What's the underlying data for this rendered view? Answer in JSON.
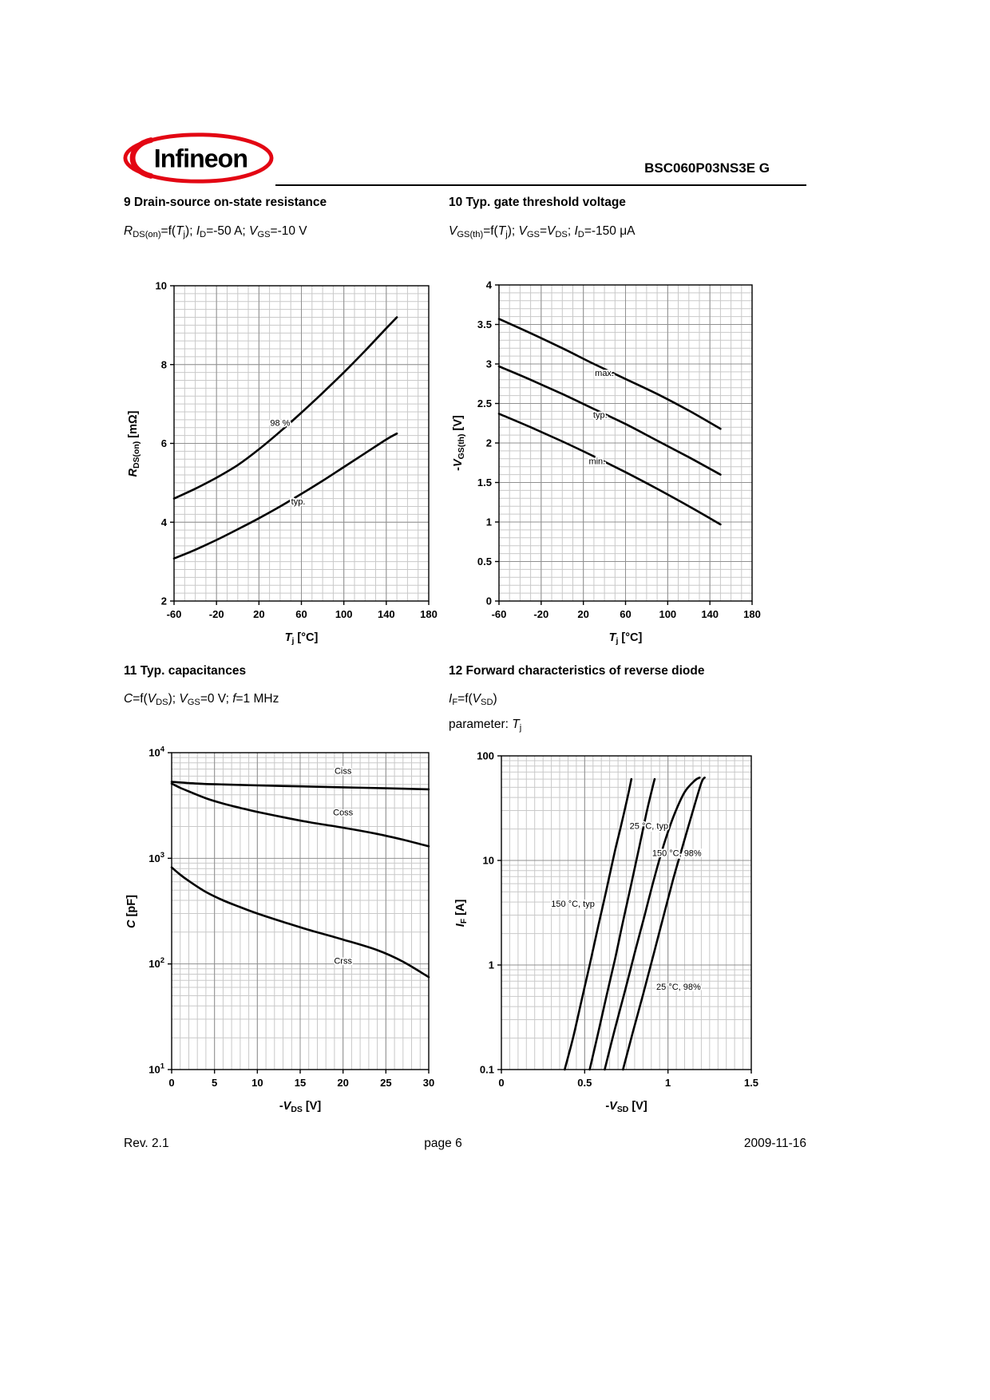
{
  "header": {
    "logo_text": "Infineon",
    "doc_title": "BSC060P03NS3E G",
    "brand_red": "#E30613",
    "brand_blue": "#1A5DAD"
  },
  "sections": [
    {
      "heading": "9 Drain-source on-state resistance",
      "subtitle": [
        [
          "R",
          "i"
        ],
        [
          "DS(on)",
          "s"
        ],
        [
          "=f(",
          ""
        ],
        [
          "T",
          "i"
        ],
        [
          "j",
          "s"
        ],
        [
          "); ",
          ""
        ],
        [
          "I",
          "i"
        ],
        [
          "D",
          "s"
        ],
        [
          "=-50 A; ",
          ""
        ],
        [
          "V",
          "i"
        ],
        [
          "GS",
          "s"
        ],
        [
          "=-10 V",
          ""
        ]
      ]
    },
    {
      "heading": "10 Typ. gate threshold voltage",
      "subtitle": [
        [
          "V",
          "i"
        ],
        [
          "GS(th)",
          "s"
        ],
        [
          "=f(",
          ""
        ],
        [
          "T",
          "i"
        ],
        [
          "j",
          "s"
        ],
        [
          "); ",
          ""
        ],
        [
          "V",
          "i"
        ],
        [
          "GS",
          "s"
        ],
        [
          "=",
          ""
        ],
        [
          "V",
          "i"
        ],
        [
          "DS",
          "s"
        ],
        [
          "; ",
          ""
        ],
        [
          "I",
          "i"
        ],
        [
          "D",
          "s"
        ],
        [
          "=-150 μA",
          ""
        ]
      ]
    },
    {
      "heading": "11 Typ. capacitances",
      "subtitle": [
        [
          "C",
          "i"
        ],
        [
          "=f(",
          ""
        ],
        [
          "V",
          "i"
        ],
        [
          "DS",
          "s"
        ],
        [
          "); ",
          ""
        ],
        [
          "V",
          "i"
        ],
        [
          "GS",
          "s"
        ],
        [
          "=0 V; ",
          ""
        ],
        [
          "f",
          "i"
        ],
        [
          "=1 MHz",
          ""
        ]
      ]
    },
    {
      "heading": "12 Forward characteristics of reverse diode",
      "subtitle": [
        [
          "I",
          "i"
        ],
        [
          "F",
          "s"
        ],
        [
          "=f(",
          ""
        ],
        [
          "V",
          "i"
        ],
        [
          "SD",
          "s"
        ],
        [
          ")",
          ""
        ]
      ],
      "subtitle2": [
        [
          "parameter: ",
          ""
        ],
        [
          "T",
          "i"
        ],
        [
          "j",
          "s"
        ]
      ]
    }
  ],
  "footer": {
    "rev": "Rev. 2.1",
    "page": "page 6",
    "date": "2009-11-16"
  },
  "chart_data": [
    {
      "id": "rdson",
      "type": "line",
      "title": "9 Drain-source on-state resistance",
      "x": {
        "min": -60,
        "max": 180,
        "ticks": [
          -60,
          -20,
          20,
          60,
          100,
          140,
          180
        ],
        "tick_labels": [
          "-60",
          "-20",
          "20",
          "60",
          "100",
          "140",
          "180"
        ],
        "minor_step": 10
      },
      "y": {
        "scale": "linear",
        "min": 2,
        "max": 10,
        "ticks": [
          2,
          4,
          6,
          8,
          10
        ],
        "tick_labels": [
          "2",
          "4",
          "6",
          "8",
          "10"
        ],
        "minor_step": 0.2
      },
      "x_title": [
        [
          "T",
          "i"
        ],
        [
          "j",
          "s"
        ],
        [
          " [°C]",
          ""
        ]
      ],
      "y_title": [
        [
          "R",
          "i"
        ],
        [
          "DS(on)",
          "s"
        ],
        [
          " [mΩ]",
          ""
        ]
      ],
      "series": [
        {
          "name": "98 %",
          "points": [
            [
              -60,
              4.6
            ],
            [
              -40,
              4.85
            ],
            [
              -20,
              5.13
            ],
            [
              0,
              5.45
            ],
            [
              20,
              5.85
            ],
            [
              40,
              6.3
            ],
            [
              60,
              6.78
            ],
            [
              80,
              7.28
            ],
            [
              100,
              7.8
            ],
            [
              120,
              8.35
            ],
            [
              140,
              8.92
            ],
            [
              150,
              9.2
            ]
          ]
        },
        {
          "name": "typ.",
          "points": [
            [
              -60,
              3.08
            ],
            [
              -40,
              3.3
            ],
            [
              -20,
              3.55
            ],
            [
              0,
              3.82
            ],
            [
              20,
              4.1
            ],
            [
              40,
              4.4
            ],
            [
              60,
              4.72
            ],
            [
              80,
              5.05
            ],
            [
              100,
              5.4
            ],
            [
              120,
              5.75
            ],
            [
              140,
              6.1
            ],
            [
              150,
              6.25
            ]
          ]
        }
      ],
      "annotations": [
        {
          "text": "98 %",
          "x": 40,
          "y": 6.45,
          "anchor": "middle"
        },
        {
          "text": "typ.",
          "x": 57,
          "y": 4.45,
          "anchor": "middle"
        }
      ]
    },
    {
      "id": "vgsth",
      "type": "line",
      "title": "10 Typ. gate threshold voltage",
      "x": {
        "min": -60,
        "max": 180,
        "ticks": [
          -60,
          -20,
          20,
          60,
          100,
          140,
          180
        ],
        "tick_labels": [
          "-60",
          "-20",
          "20",
          "60",
          "100",
          "140",
          "180"
        ],
        "minor_step": 10
      },
      "y": {
        "scale": "linear",
        "min": 0,
        "max": 4,
        "ticks": [
          0,
          0.5,
          1,
          1.5,
          2,
          2.5,
          3,
          3.5,
          4
        ],
        "tick_labels": [
          "0",
          "0.5",
          "1",
          "1.5",
          "2",
          "2.5",
          "3",
          "3.5",
          "4"
        ],
        "minor_step": 0.1
      },
      "x_title": [
        [
          "T",
          "i"
        ],
        [
          "j",
          "s"
        ],
        [
          " [°C]",
          ""
        ]
      ],
      "y_title": [
        [
          "-",
          ""
        ],
        [
          "V",
          "i"
        ],
        [
          "GS(th)",
          "s"
        ],
        [
          " [V]",
          ""
        ]
      ],
      "series": [
        {
          "name": "max.",
          "points": [
            [
              -60,
              3.57
            ],
            [
              -30,
              3.39
            ],
            [
              0,
              3.2
            ],
            [
              30,
              3.0
            ],
            [
              60,
              2.81
            ],
            [
              90,
              2.62
            ],
            [
              120,
              2.41
            ],
            [
              150,
              2.18
            ]
          ]
        },
        {
          "name": "typ.",
          "points": [
            [
              -60,
              2.97
            ],
            [
              -30,
              2.8
            ],
            [
              0,
              2.62
            ],
            [
              30,
              2.43
            ],
            [
              60,
              2.24
            ],
            [
              90,
              2.03
            ],
            [
              120,
              1.82
            ],
            [
              150,
              1.6
            ]
          ]
        },
        {
          "name": "min.",
          "points": [
            [
              -60,
              2.37
            ],
            [
              -30,
              2.2
            ],
            [
              0,
              2.02
            ],
            [
              30,
              1.83
            ],
            [
              60,
              1.63
            ],
            [
              90,
              1.42
            ],
            [
              120,
              1.2
            ],
            [
              150,
              0.97
            ]
          ]
        }
      ],
      "annotations": [
        {
          "text": "max.",
          "x": 40,
          "y": 2.85,
          "anchor": "middle"
        },
        {
          "text": "typ.",
          "x": 36,
          "y": 2.32,
          "anchor": "middle"
        },
        {
          "text": "min.",
          "x": 33,
          "y": 1.73,
          "anchor": "middle"
        }
      ]
    },
    {
      "id": "cap",
      "type": "line",
      "title": "11 Typ. capacitances",
      "x": {
        "min": 0,
        "max": 30,
        "ticks": [
          0,
          5,
          10,
          15,
          20,
          25,
          30
        ],
        "tick_labels": [
          "0",
          "5",
          "10",
          "15",
          "20",
          "25",
          "30"
        ],
        "minor_step": 1
      },
      "y": {
        "scale": "log",
        "min": 10,
        "max": 10000,
        "ticks": [
          10,
          100,
          1000,
          10000
        ],
        "tick_labels": [
          {
            "base": "10",
            "exp": "1"
          },
          {
            "base": "10",
            "exp": "2"
          },
          {
            "base": "10",
            "exp": "3"
          },
          {
            "base": "10",
            "exp": "4"
          }
        ]
      },
      "x_title": [
        [
          "-",
          ""
        ],
        [
          "V",
          "i"
        ],
        [
          "DS",
          "s"
        ],
        [
          " [V]",
          ""
        ]
      ],
      "y_title": [
        [
          "C",
          "i"
        ],
        [
          " [pF]",
          ""
        ]
      ],
      "series": [
        {
          "name": "Ciss",
          "points": [
            [
              0,
              5300
            ],
            [
              3,
              5100
            ],
            [
              6,
              5000
            ],
            [
              10,
              4900
            ],
            [
              15,
              4800
            ],
            [
              20,
              4700
            ],
            [
              25,
              4600
            ],
            [
              30,
              4500
            ]
          ]
        },
        {
          "name": "Coss",
          "points": [
            [
              0,
              5100
            ],
            [
              1,
              4650
            ],
            [
              2,
              4300
            ],
            [
              4,
              3700
            ],
            [
              6,
              3300
            ],
            [
              8,
              3000
            ],
            [
              10,
              2750
            ],
            [
              13,
              2450
            ],
            [
              16,
              2200
            ],
            [
              20,
              1950
            ],
            [
              24,
              1700
            ],
            [
              27,
              1500
            ],
            [
              30,
              1300
            ]
          ]
        },
        {
          "name": "Crss",
          "points": [
            [
              0,
              820
            ],
            [
              1,
              700
            ],
            [
              2,
              610
            ],
            [
              4,
              480
            ],
            [
              6,
              400
            ],
            [
              8,
              345
            ],
            [
              10,
              300
            ],
            [
              13,
              250
            ],
            [
              16,
              210
            ],
            [
              20,
              170
            ],
            [
              24,
              135
            ],
            [
              27,
              105
            ],
            [
              30,
              75
            ]
          ]
        }
      ],
      "annotations": [
        {
          "text": "Ciss",
          "x": 20,
          "y": 6300,
          "anchor": "middle"
        },
        {
          "text": "Coss",
          "x": 20,
          "y": 2550,
          "anchor": "middle"
        },
        {
          "text": "Crss",
          "x": 20,
          "y": 100,
          "anchor": "middle"
        }
      ]
    },
    {
      "id": "diode",
      "type": "line",
      "title": "12 Forward characteristics of reverse diode",
      "x": {
        "min": 0,
        "max": 1.5,
        "ticks": [
          0,
          0.5,
          1,
          1.5
        ],
        "tick_labels": [
          "0",
          "0.5",
          "1",
          "1.5"
        ],
        "minor_step": 0.05
      },
      "y": {
        "scale": "log",
        "min": 0.1,
        "max": 100,
        "ticks": [
          0.1,
          1,
          10,
          100
        ],
        "tick_labels": [
          "0.1",
          "1",
          "10",
          "100"
        ]
      },
      "x_title": [
        [
          "-",
          ""
        ],
        [
          "V",
          "i"
        ],
        [
          "SD",
          "s"
        ],
        [
          " [V]",
          ""
        ]
      ],
      "y_title": [
        [
          "I",
          "i"
        ],
        [
          "F",
          "s"
        ],
        [
          " [A]",
          ""
        ]
      ],
      "series": [
        {
          "name": "150 °C, typ",
          "points": [
            [
              0.38,
              0.1
            ],
            [
              0.43,
              0.2
            ],
            [
              0.48,
              0.45
            ],
            [
              0.53,
              1.0
            ],
            [
              0.58,
              2.3
            ],
            [
              0.63,
              5.2
            ],
            [
              0.68,
              12
            ],
            [
              0.72,
              22
            ],
            [
              0.76,
              42
            ],
            [
              0.78,
              60
            ]
          ]
        },
        {
          "name": "25 °C, typ",
          "points": [
            [
              0.53,
              0.1
            ],
            [
              0.58,
              0.22
            ],
            [
              0.63,
              0.5
            ],
            [
              0.68,
              1.1
            ],
            [
              0.73,
              2.6
            ],
            [
              0.78,
              6
            ],
            [
              0.83,
              14
            ],
            [
              0.87,
              28
            ],
            [
              0.91,
              52
            ],
            [
              0.92,
              60
            ]
          ]
        },
        {
          "name": "150 °C, 98%",
          "points": [
            [
              0.62,
              0.1
            ],
            [
              0.68,
              0.24
            ],
            [
              0.74,
              0.55
            ],
            [
              0.8,
              1.3
            ],
            [
              0.86,
              3.0
            ],
            [
              0.92,
              7
            ],
            [
              0.98,
              15
            ],
            [
              1.04,
              28
            ],
            [
              1.1,
              45
            ],
            [
              1.16,
              58
            ],
            [
              1.19,
              62
            ]
          ]
        },
        {
          "name": "25 °C, 98%",
          "points": [
            [
              0.73,
              0.1
            ],
            [
              0.79,
              0.23
            ],
            [
              0.85,
              0.52
            ],
            [
              0.91,
              1.2
            ],
            [
              0.97,
              2.8
            ],
            [
              1.03,
              6.5
            ],
            [
              1.09,
              14
            ],
            [
              1.15,
              30
            ],
            [
              1.2,
              55
            ],
            [
              1.22,
              62
            ]
          ]
        }
      ],
      "annotations": [
        {
          "text": "25 °C, typ",
          "x": 0.77,
          "y": 20,
          "anchor": "start"
        },
        {
          "text": "150 °C, 98%",
          "x": 0.905,
          "y": 11,
          "anchor": "start"
        },
        {
          "text": "150 °C, typ",
          "x": 0.56,
          "y": 3.6,
          "anchor": "end"
        },
        {
          "text": "25 °C, 98%",
          "x": 0.93,
          "y": 0.58,
          "anchor": "start"
        }
      ]
    }
  ]
}
